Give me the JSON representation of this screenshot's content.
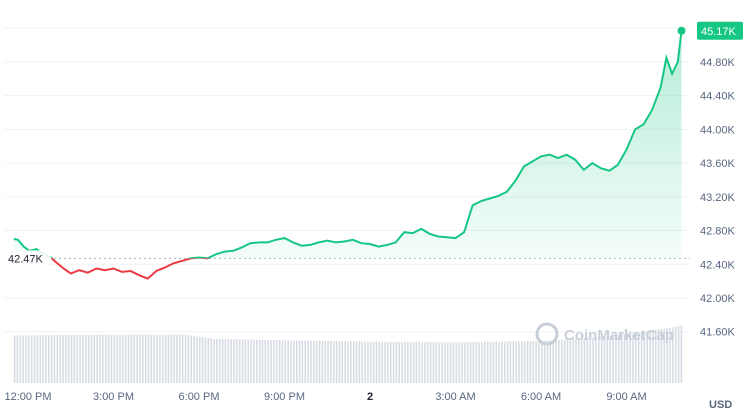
{
  "chart_data": {
    "type": "line",
    "currency": "USD",
    "baseline_label": "42.47K",
    "baseline_value": 42470,
    "last_price_label": "45.17K",
    "watermark": "CoinMarketCap",
    "ylim": [
      41300,
      45450
    ],
    "y_ticks": [
      {
        "value": 41600,
        "label": "41.60K"
      },
      {
        "value": 42000,
        "label": "42.00K"
      },
      {
        "value": 42400,
        "label": "42.40K"
      },
      {
        "value": 42800,
        "label": "42.80K"
      },
      {
        "value": 43200,
        "label": "43.20K"
      },
      {
        "value": 43600,
        "label": "43.60K"
      },
      {
        "value": 44000,
        "label": "44.00K"
      },
      {
        "value": 44400,
        "label": "44.40K"
      },
      {
        "value": 44800,
        "label": "44.80K"
      },
      {
        "value": 45200,
        "label": ""
      }
    ],
    "x_ticks": [
      {
        "hours": 0,
        "label": "12:00 PM",
        "bold": false
      },
      {
        "hours": 3,
        "label": "3:00 PM",
        "bold": false
      },
      {
        "hours": 6,
        "label": "6:00 PM",
        "bold": false
      },
      {
        "hours": 9,
        "label": "9:00 PM",
        "bold": false
      },
      {
        "hours": 12,
        "label": "2",
        "bold": true
      },
      {
        "hours": 15,
        "label": "3:00 AM",
        "bold": false
      },
      {
        "hours": 18,
        "label": "6:00 AM",
        "bold": false
      },
      {
        "hours": 21,
        "label": "9:00 AM",
        "bold": false
      }
    ],
    "price_series": [
      [
        -0.5,
        42700
      ],
      [
        -0.35,
        42690
      ],
      [
        -0.15,
        42610
      ],
      [
        0.05,
        42560
      ],
      [
        0.3,
        42580
      ],
      [
        0.55,
        42520
      ],
      [
        0.8,
        42480
      ],
      [
        1.0,
        42420
      ],
      [
        1.25,
        42350
      ],
      [
        1.5,
        42290
      ],
      [
        1.8,
        42330
      ],
      [
        2.1,
        42300
      ],
      [
        2.4,
        42350
      ],
      [
        2.7,
        42330
      ],
      [
        3.0,
        42350
      ],
      [
        3.3,
        42310
      ],
      [
        3.6,
        42320
      ],
      [
        3.9,
        42270
      ],
      [
        4.2,
        42230
      ],
      [
        4.5,
        42320
      ],
      [
        4.8,
        42360
      ],
      [
        5.1,
        42410
      ],
      [
        5.4,
        42440
      ],
      [
        5.7,
        42470
      ],
      [
        6.0,
        42480
      ],
      [
        6.3,
        42470
      ],
      [
        6.6,
        42520
      ],
      [
        6.9,
        42550
      ],
      [
        7.2,
        42560
      ],
      [
        7.5,
        42600
      ],
      [
        7.8,
        42650
      ],
      [
        8.1,
        42660
      ],
      [
        8.4,
        42660
      ],
      [
        8.7,
        42690
      ],
      [
        9.0,
        42710
      ],
      [
        9.3,
        42660
      ],
      [
        9.6,
        42620
      ],
      [
        9.9,
        42630
      ],
      [
        10.2,
        42660
      ],
      [
        10.5,
        42680
      ],
      [
        10.8,
        42660
      ],
      [
        11.1,
        42670
      ],
      [
        11.4,
        42690
      ],
      [
        11.7,
        42650
      ],
      [
        12.0,
        42640
      ],
      [
        12.3,
        42610
      ],
      [
        12.6,
        42630
      ],
      [
        12.9,
        42660
      ],
      [
        13.2,
        42780
      ],
      [
        13.5,
        42770
      ],
      [
        13.8,
        42820
      ],
      [
        14.1,
        42760
      ],
      [
        14.4,
        42730
      ],
      [
        14.7,
        42720
      ],
      [
        15.0,
        42710
      ],
      [
        15.3,
        42780
      ],
      [
        15.6,
        43100
      ],
      [
        15.9,
        43150
      ],
      [
        16.2,
        43180
      ],
      [
        16.5,
        43210
      ],
      [
        16.8,
        43260
      ],
      [
        17.1,
        43390
      ],
      [
        17.4,
        43560
      ],
      [
        17.7,
        43620
      ],
      [
        18.0,
        43680
      ],
      [
        18.3,
        43700
      ],
      [
        18.6,
        43660
      ],
      [
        18.9,
        43700
      ],
      [
        19.2,
        43640
      ],
      [
        19.5,
        43520
      ],
      [
        19.8,
        43600
      ],
      [
        20.1,
        43540
      ],
      [
        20.4,
        43510
      ],
      [
        20.7,
        43580
      ],
      [
        21.0,
        43760
      ],
      [
        21.3,
        44000
      ],
      [
        21.6,
        44060
      ],
      [
        21.9,
        44230
      ],
      [
        22.2,
        44500
      ],
      [
        22.4,
        44850
      ],
      [
        22.6,
        44660
      ],
      [
        22.8,
        44800
      ],
      [
        22.93,
        45170
      ]
    ],
    "volume_levels": [
      [
        -0.5,
        0.68
      ],
      [
        3,
        0.69
      ],
      [
        5.5,
        0.69
      ],
      [
        6.5,
        0.63
      ],
      [
        9,
        0.61
      ],
      [
        12,
        0.59
      ],
      [
        15,
        0.58
      ],
      [
        18,
        0.6
      ],
      [
        20,
        0.66
      ],
      [
        21.5,
        0.72
      ],
      [
        22.93,
        0.82
      ]
    ],
    "colors": {
      "up": "#16c784",
      "down": "#ea3943",
      "area_top": "#16c784",
      "volume": "#d7dbe3",
      "grid": "#eff2f5",
      "baseline": "#a6b0c3"
    }
  }
}
